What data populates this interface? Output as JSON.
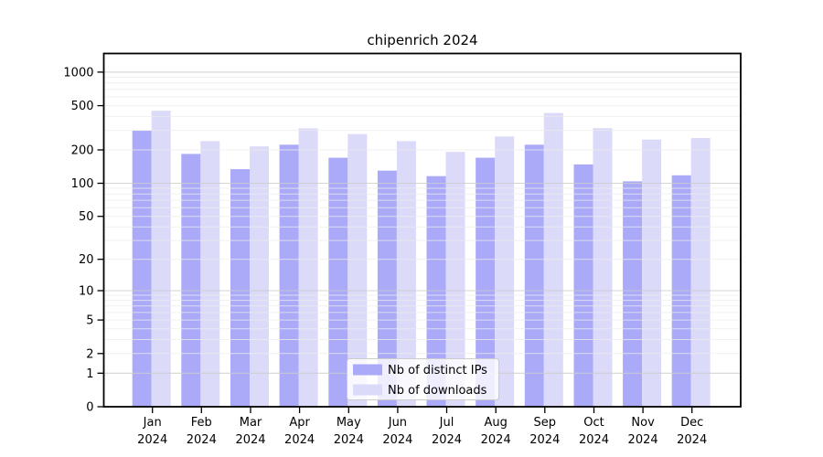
{
  "chart_data": {
    "type": "bar",
    "title": "chipenrich 2024",
    "year": "2024",
    "categories": [
      "Jan",
      "Feb",
      "Mar",
      "Apr",
      "May",
      "Jun",
      "Jul",
      "Aug",
      "Sep",
      "Oct",
      "Nov",
      "Dec"
    ],
    "series": [
      {
        "name": "Nb of distinct IPs",
        "color": "#aaaaf8",
        "values": [
          298,
          184,
          134,
          223,
          170,
          130,
          116,
          170,
          223,
          148,
          104,
          118
        ]
      },
      {
        "name": "Nb of downloads",
        "color": "#dbdaf8",
        "values": [
          450,
          240,
          215,
          313,
          278,
          240,
          192,
          264,
          430,
          314,
          248,
          256
        ]
      }
    ],
    "yticks": [
      0,
      1,
      2,
      5,
      10,
      20,
      50,
      100,
      200,
      500,
      1000
    ],
    "ylim": [
      0,
      1000
    ],
    "yscale": "log10(1+v)",
    "xlabel": "",
    "ylabel": "",
    "grid": true,
    "legend_position": "bottom-center",
    "colors": {
      "plot_border": "#000000",
      "grid_minor": "#ececec",
      "grid_decade": "#cdcdcd",
      "legend_border": "#cccccc",
      "legend_bg": "#ffffff",
      "text": "#000000"
    }
  }
}
